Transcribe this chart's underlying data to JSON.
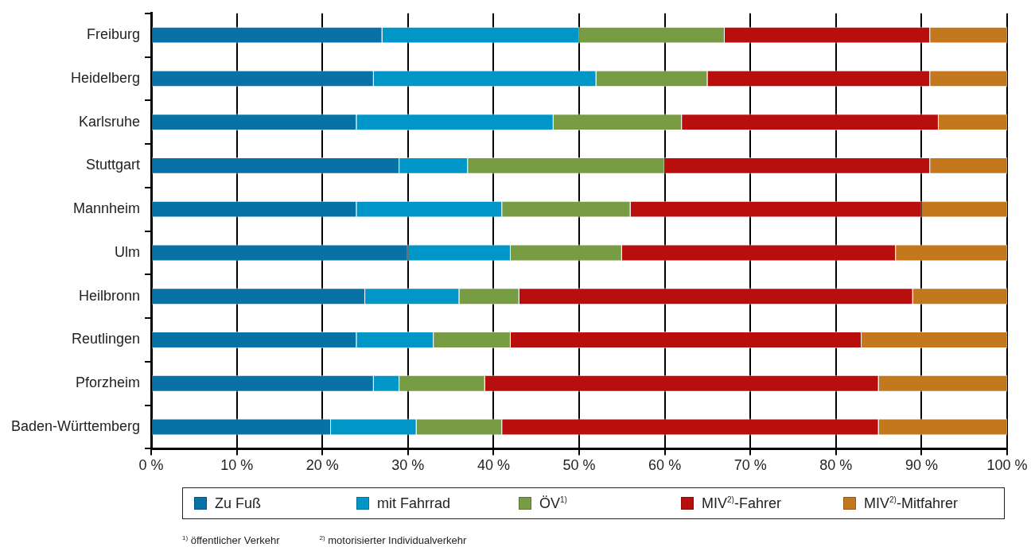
{
  "chart_data": {
    "type": "bar",
    "orientation": "horizontal",
    "stacked": true,
    "categories": [
      "Freiburg",
      "Heidelberg",
      "Karlsruhe",
      "Stuttgart",
      "Mannheim",
      "Ulm",
      "Heilbronn",
      "Reutlingen",
      "Pforzheim",
      "Baden-Württemberg"
    ],
    "series": [
      {
        "name": "Zu Fuß",
        "color": "#0872a6",
        "values": [
          27,
          26,
          24,
          29,
          24,
          30,
          25,
          24,
          26,
          21
        ]
      },
      {
        "name": "mit Fahrrad",
        "color": "#0096c8",
        "values": [
          23,
          26,
          23,
          8,
          17,
          12,
          11,
          9,
          3,
          10
        ]
      },
      {
        "name": "ÖV$^{1)}$",
        "color": "#789c44",
        "values": [
          17,
          13,
          15,
          23,
          15,
          13,
          7,
          9,
          10,
          10
        ]
      },
      {
        "name": "MIV$^{2)}$-Fahrer",
        "color": "#b80f0e",
        "values": [
          24,
          26,
          30,
          31,
          34,
          32,
          46,
          41,
          46,
          44
        ]
      },
      {
        "name": "MIV$^{2)}$-Mitfahrer",
        "color": "#c4781e",
        "values": [
          9,
          9,
          8,
          9,
          10,
          13,
          11,
          17,
          15,
          15
        ]
      }
    ],
    "xlim": [
      0,
      100
    ],
    "xticks": [
      {
        "value": 0,
        "label": "0 %"
      },
      {
        "value": 10,
        "label": "10 %"
      },
      {
        "value": 20,
        "label": "20 %"
      },
      {
        "value": 30,
        "label": "30 %"
      },
      {
        "value": 40,
        "label": "40 %"
      },
      {
        "value": 50,
        "label": "50 %"
      },
      {
        "value": 60,
        "label": "60 %"
      },
      {
        "value": 70,
        "label": "70 %"
      },
      {
        "value": 80,
        "label": "80 %"
      },
      {
        "value": 90,
        "label": "90 %"
      },
      {
        "value": 100,
        "label": "100 %"
      }
    ],
    "grid": "x",
    "legend": "bottom",
    "annotations": [
      "$^{1)}$ öffentlicher Verkehr",
      "$^{2)}$ motorisierter Individualverkehr"
    ]
  }
}
